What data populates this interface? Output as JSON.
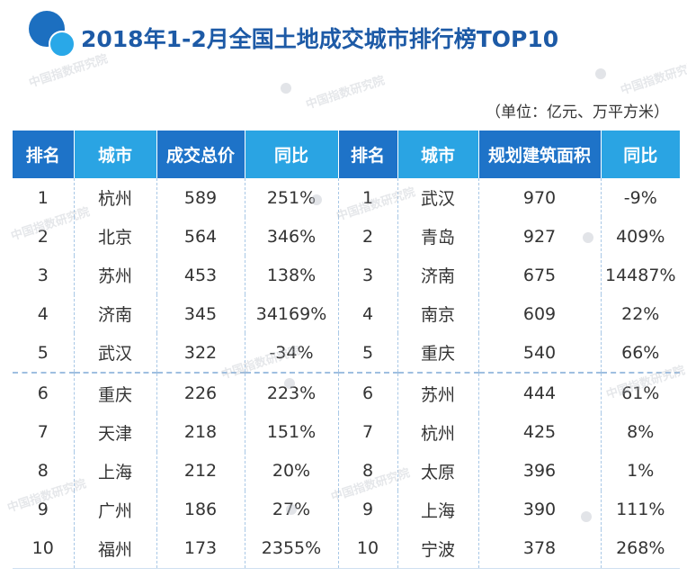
{
  "title": "2018年1-2月全国土地成交城市排行榜TOP10",
  "unit": "（单位：亿元、万平方米）",
  "watermark": "中国指数研究院",
  "colors": {
    "header_dark": "#1e73c8",
    "header_light": "#2aa4e3",
    "title": "#1d5aa6"
  },
  "headers": [
    "排名",
    "城市",
    "成交总价",
    "同比",
    "排名",
    "城市",
    "规划建筑面积",
    "同比"
  ],
  "rows": [
    [
      "1",
      "杭州",
      "589",
      "251%",
      "1",
      "武汉",
      "970",
      "-9%"
    ],
    [
      "2",
      "北京",
      "564",
      "346%",
      "2",
      "青岛",
      "927",
      "409%"
    ],
    [
      "3",
      "苏州",
      "453",
      "138%",
      "3",
      "济南",
      "675",
      "14487%"
    ],
    [
      "4",
      "济南",
      "345",
      "34169%",
      "4",
      "南京",
      "609",
      "22%"
    ],
    [
      "5",
      "武汉",
      "322",
      "-34%",
      "5",
      "重庆",
      "540",
      "66%"
    ],
    [
      "6",
      "重庆",
      "226",
      "223%",
      "6",
      "苏州",
      "444",
      "61%"
    ],
    [
      "7",
      "天津",
      "218",
      "151%",
      "7",
      "杭州",
      "425",
      "8%"
    ],
    [
      "8",
      "上海",
      "212",
      "20%",
      "8",
      "太原",
      "396",
      "1%"
    ],
    [
      "9",
      "广州",
      "186",
      "27%",
      "9",
      "上海",
      "390",
      "111%"
    ],
    [
      "10",
      "福州",
      "173",
      "2355%",
      "10",
      "宁波",
      "378",
      "268%"
    ]
  ]
}
